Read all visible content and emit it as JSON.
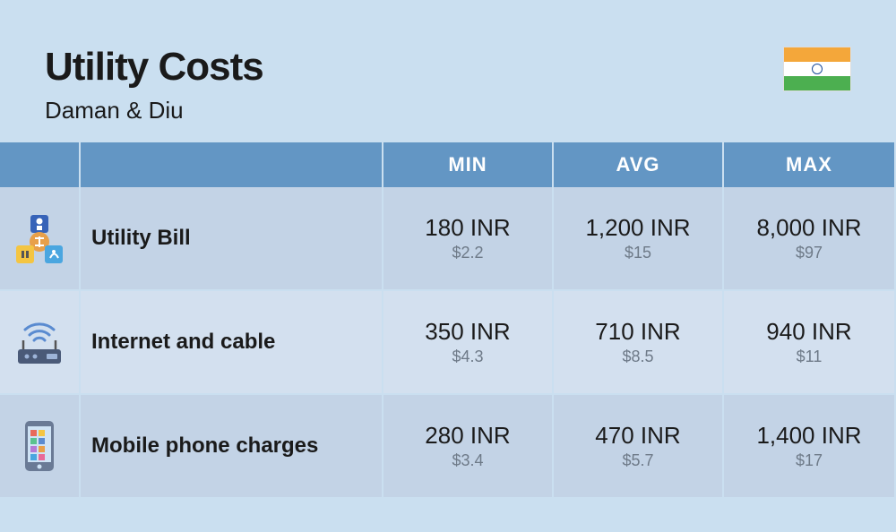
{
  "header": {
    "title": "Utility Costs",
    "subtitle": "Daman & Diu"
  },
  "flag": {
    "stripe_top": "#f4a73a",
    "stripe_mid": "#ffffff",
    "stripe_bot": "#4caf50",
    "chakra": "#1a4b9a"
  },
  "colors": {
    "page_bg": "#cadff0",
    "header_bg": "#6396c4",
    "header_text": "#ffffff",
    "row_odd": "#c3d3e6",
    "row_even": "#d3e0ef",
    "text_main": "#1a1a1a",
    "text_sub": "#6e7a88"
  },
  "table": {
    "columns": [
      "MIN",
      "AVG",
      "MAX"
    ],
    "rows": [
      {
        "icon": "utility-bill-icon",
        "label": "Utility Bill",
        "values": [
          {
            "main": "180 INR",
            "sub": "$2.2"
          },
          {
            "main": "1,200 INR",
            "sub": "$15"
          },
          {
            "main": "8,000 INR",
            "sub": "$97"
          }
        ]
      },
      {
        "icon": "router-icon",
        "label": "Internet and cable",
        "values": [
          {
            "main": "350 INR",
            "sub": "$4.3"
          },
          {
            "main": "710 INR",
            "sub": "$8.5"
          },
          {
            "main": "940 INR",
            "sub": "$11"
          }
        ]
      },
      {
        "icon": "mobile-phone-icon",
        "label": "Mobile phone charges",
        "values": [
          {
            "main": "280 INR",
            "sub": "$3.4"
          },
          {
            "main": "470 INR",
            "sub": "$5.7"
          },
          {
            "main": "1,400 INR",
            "sub": "$17"
          }
        ]
      }
    ]
  }
}
